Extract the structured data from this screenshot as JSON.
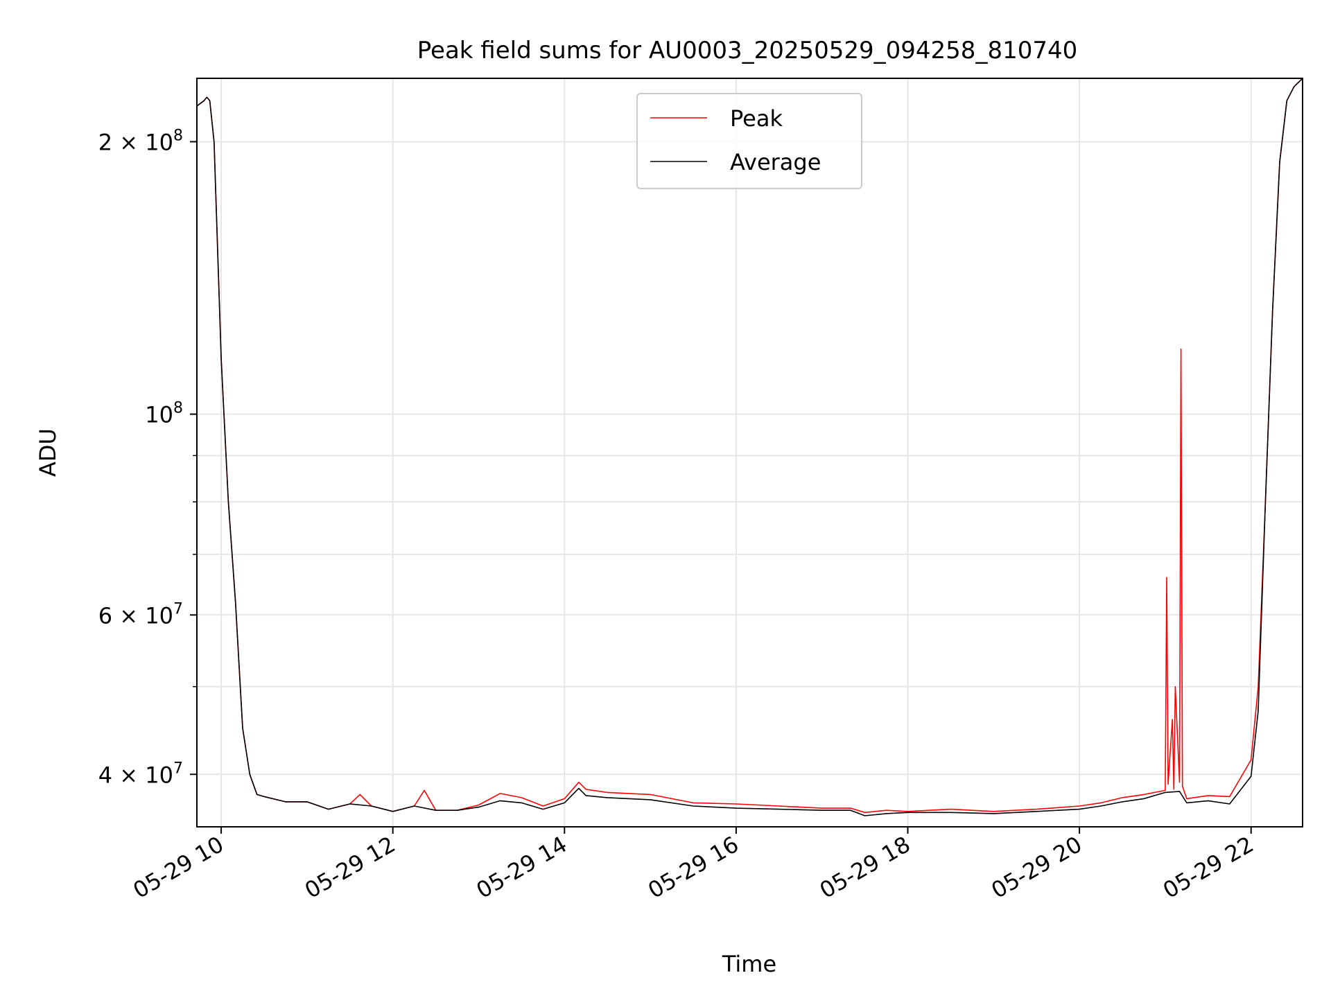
{
  "chart_data": {
    "type": "line",
    "title": "Peak field sums for AU0003_20250529_094258_810740",
    "xlabel": "Time",
    "ylabel": "ADU",
    "yscale": "log",
    "ylim": [
      35000000,
      235000000
    ],
    "xlim": [
      "2025-05-29 09:43",
      "2025-05-29 22:36"
    ],
    "grid": true,
    "legend": "upper center",
    "x_ticks": [
      {
        "t": "2025-05-29 10:00",
        "label": "05-29 10"
      },
      {
        "t": "2025-05-29 12:00",
        "label": "05-29 12"
      },
      {
        "t": "2025-05-29 14:00",
        "label": "05-29 14"
      },
      {
        "t": "2025-05-29 16:00",
        "label": "05-29 16"
      },
      {
        "t": "2025-05-29 18:00",
        "label": "05-29 18"
      },
      {
        "t": "2025-05-29 20:00",
        "label": "05-29 20"
      },
      {
        "t": "2025-05-29 22:00",
        "label": "05-29 22"
      }
    ],
    "y_major_ticks": [
      {
        "v": 200000000,
        "mant": "2",
        "exp": "8"
      },
      {
        "v": 100000000,
        "mant": "",
        "exp": "8"
      },
      {
        "v": 60000000,
        "mant": "6",
        "exp": "7"
      },
      {
        "v": 40000000,
        "mant": "4",
        "exp": "7"
      }
    ],
    "y_minor_ticks": [
      90000000,
      80000000,
      70000000,
      50000000
    ],
    "series": [
      {
        "name": "Peak",
        "color": "#ff0000",
        "x": [
          "2025-05-29 09:43",
          "2025-05-29 09:48",
          "2025-05-29 09:50",
          "2025-05-29 09:52",
          "2025-05-29 09:55",
          "2025-05-29 10:00",
          "2025-05-29 10:05",
          "2025-05-29 10:10",
          "2025-05-29 10:15",
          "2025-05-29 10:20",
          "2025-05-29 10:25",
          "2025-05-29 10:30",
          "2025-05-29 10:45",
          "2025-05-29 11:00",
          "2025-05-29 11:15",
          "2025-05-29 11:30",
          "2025-05-29 11:37",
          "2025-05-29 11:45",
          "2025-05-29 12:00",
          "2025-05-29 12:15",
          "2025-05-29 12:22",
          "2025-05-29 12:30",
          "2025-05-29 12:45",
          "2025-05-29 13:00",
          "2025-05-29 13:15",
          "2025-05-29 13:30",
          "2025-05-29 13:45",
          "2025-05-29 14:00",
          "2025-05-29 14:10",
          "2025-05-29 14:15",
          "2025-05-29 14:30",
          "2025-05-29 15:00",
          "2025-05-29 15:30",
          "2025-05-29 16:00",
          "2025-05-29 16:30",
          "2025-05-29 17:00",
          "2025-05-29 17:20",
          "2025-05-29 17:30",
          "2025-05-29 17:45",
          "2025-05-29 18:00",
          "2025-05-29 18:30",
          "2025-05-29 19:00",
          "2025-05-29 19:30",
          "2025-05-29 20:00",
          "2025-05-29 20:15",
          "2025-05-29 20:30",
          "2025-05-29 20:45",
          "2025-05-29 21:00",
          "2025-05-29 21:01",
          "2025-05-29 21:02",
          "2025-05-29 21:05",
          "2025-05-29 21:06",
          "2025-05-29 21:07",
          "2025-05-29 21:10",
          "2025-05-29 21:11",
          "2025-05-29 21:12",
          "2025-05-29 21:15",
          "2025-05-29 21:30",
          "2025-05-29 21:45",
          "2025-05-29 22:00",
          "2025-05-29 22:05",
          "2025-05-29 22:10",
          "2025-05-29 22:15",
          "2025-05-29 22:20",
          "2025-05-29 22:25",
          "2025-05-29 22:30",
          "2025-05-29 22:36"
        ],
        "y": [
          219000000,
          222000000,
          224000000,
          222000000,
          200000000,
          115000000,
          80000000,
          62000000,
          45000000,
          40000000,
          38000000,
          37800000,
          37300000,
          37300000,
          36600000,
          37100000,
          38000000,
          36900000,
          36400000,
          36900000,
          38400000,
          36500000,
          36500000,
          37000000,
          38100000,
          37700000,
          36900000,
          37600000,
          39200000,
          38500000,
          38200000,
          38000000,
          37200000,
          37100000,
          36900000,
          36700000,
          36700000,
          36300000,
          36500000,
          36400000,
          36600000,
          36400000,
          36600000,
          36900000,
          37200000,
          37700000,
          38000000,
          38400000,
          66000000,
          39000000,
          46000000,
          38500000,
          50000000,
          39200000,
          118000000,
          38800000,
          37600000,
          37900000,
          37800000,
          41500000,
          50000000,
          80000000,
          130000000,
          190000000,
          222000000,
          230000000,
          235000000
        ]
      },
      {
        "name": "Average",
        "color": "#000000",
        "x": [
          "2025-05-29 09:43",
          "2025-05-29 09:48",
          "2025-05-29 09:50",
          "2025-05-29 09:52",
          "2025-05-29 09:55",
          "2025-05-29 10:00",
          "2025-05-29 10:05",
          "2025-05-29 10:10",
          "2025-05-29 10:15",
          "2025-05-29 10:20",
          "2025-05-29 10:25",
          "2025-05-29 10:30",
          "2025-05-29 10:45",
          "2025-05-29 11:00",
          "2025-05-29 11:15",
          "2025-05-29 11:30",
          "2025-05-29 11:45",
          "2025-05-29 12:00",
          "2025-05-29 12:15",
          "2025-05-29 12:30",
          "2025-05-29 12:45",
          "2025-05-29 13:00",
          "2025-05-29 13:15",
          "2025-05-29 13:30",
          "2025-05-29 13:45",
          "2025-05-29 14:00",
          "2025-05-29 14:10",
          "2025-05-29 14:15",
          "2025-05-29 14:30",
          "2025-05-29 15:00",
          "2025-05-29 15:30",
          "2025-05-29 16:00",
          "2025-05-29 16:30",
          "2025-05-29 17:00",
          "2025-05-29 17:20",
          "2025-05-29 17:30",
          "2025-05-29 17:45",
          "2025-05-29 18:00",
          "2025-05-29 18:30",
          "2025-05-29 19:00",
          "2025-05-29 19:30",
          "2025-05-29 20:00",
          "2025-05-29 20:15",
          "2025-05-29 20:30",
          "2025-05-29 20:45",
          "2025-05-29 21:00",
          "2025-05-29 21:10",
          "2025-05-29 21:15",
          "2025-05-29 21:30",
          "2025-05-29 21:45",
          "2025-05-29 22:00",
          "2025-05-29 22:05",
          "2025-05-29 22:10",
          "2025-05-29 22:15",
          "2025-05-29 22:20",
          "2025-05-29 22:25",
          "2025-05-29 22:30",
          "2025-05-29 22:36"
        ],
        "y": [
          219000000,
          222000000,
          224000000,
          222000000,
          200000000,
          115000000,
          80000000,
          62000000,
          45000000,
          40000000,
          38000000,
          37800000,
          37300000,
          37300000,
          36600000,
          37100000,
          36900000,
          36400000,
          36900000,
          36500000,
          36500000,
          36800000,
          37400000,
          37200000,
          36600000,
          37200000,
          38600000,
          37900000,
          37700000,
          37500000,
          36900000,
          36700000,
          36600000,
          36500000,
          36500000,
          36000000,
          36200000,
          36300000,
          36300000,
          36200000,
          36400000,
          36600000,
          36900000,
          37300000,
          37600000,
          38200000,
          38300000,
          37200000,
          37400000,
          37100000,
          39800000,
          47000000,
          80000000,
          130000000,
          190000000,
          222000000,
          230000000,
          235000000
        ]
      }
    ]
  }
}
